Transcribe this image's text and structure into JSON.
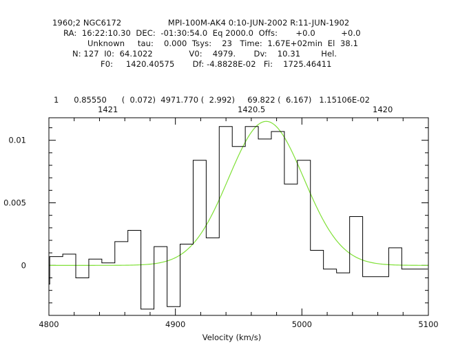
{
  "header": {
    "lines": [
      "1960;2 NGC6172                  MPI-100M-AK4 0:10-JUN-2002 R:11-JUN-1902",
      "RA:  16:22:10.30  DEC:  -01:30:54.0  Eq 2000.0  Offs:       +0.0          +0.0",
      "Unknown     tau:    0.000  Tsys:    23   Time:  1.67E+02min  El  38.1",
      "N: 127  I0:  64.1022              V0:    4979.       Dv:    10.31        Hel.",
      "F0:     1420.40575       Df: -4.8828E-02   Fi:    1725.46411"
    ],
    "fit_line": "1      0.85550      (  0.072)  4971.770 (  2.992)     69.822 (  6.167)   1.15106E-02",
    "freq_labels": [
      "1421",
      "1420.5",
      "1420"
    ]
  },
  "chart_data": {
    "type": "line",
    "xlabel": "Velocity (km/s)",
    "ylabel": "",
    "xlim": [
      4800,
      5100
    ],
    "ylim": [
      -0.004,
      0.0118
    ],
    "x_ticks": [
      4800,
      4900,
      5000,
      5100
    ],
    "x_tick_labels": [
      "4800",
      "4900",
      "5000",
      "5100"
    ],
    "y_ticks": [
      0,
      0.005,
      0.01
    ],
    "y_tick_labels": [
      "0",
      "0.005",
      "0.01"
    ],
    "grid": false,
    "series": [
      {
        "kind": "histogram",
        "color": "#000000",
        "bin_width": 10.31,
        "x": [
          4795.5,
          4805.8,
          4816.1,
          4826.4,
          4836.7,
          4847.0,
          4857.3,
          4867.6,
          4877.9,
          4888.3,
          4898.6,
          4908.9,
          4919.2,
          4929.5,
          4939.8,
          4950.1,
          4960.4,
          4970.7,
          4981.0,
          4991.3,
          5001.6,
          5011.9,
          5022.2,
          5032.6,
          5042.9,
          5053.2,
          5063.5,
          5073.8,
          5084.1,
          5094.4
        ],
        "y": [
          -0.0015,
          0.0007,
          0.0009,
          -0.001,
          0.0005,
          0.0002,
          0.0019,
          0.0028,
          -0.0035,
          0.0015,
          -0.0033,
          0.0017,
          0.0084,
          0.0022,
          0.0111,
          0.0095,
          0.0111,
          0.0101,
          0.0107,
          0.0065,
          0.0084,
          0.0012,
          -0.0003,
          -0.0006,
          0.0039,
          -0.0009,
          -0.0009,
          0.0014,
          -0.0003,
          -0.0003
        ]
      },
      {
        "kind": "gaussian_fit",
        "color": "#7fe036",
        "amplitude": 0.0115106,
        "center": 4971.77,
        "fwhm": 69.822
      }
    ]
  }
}
